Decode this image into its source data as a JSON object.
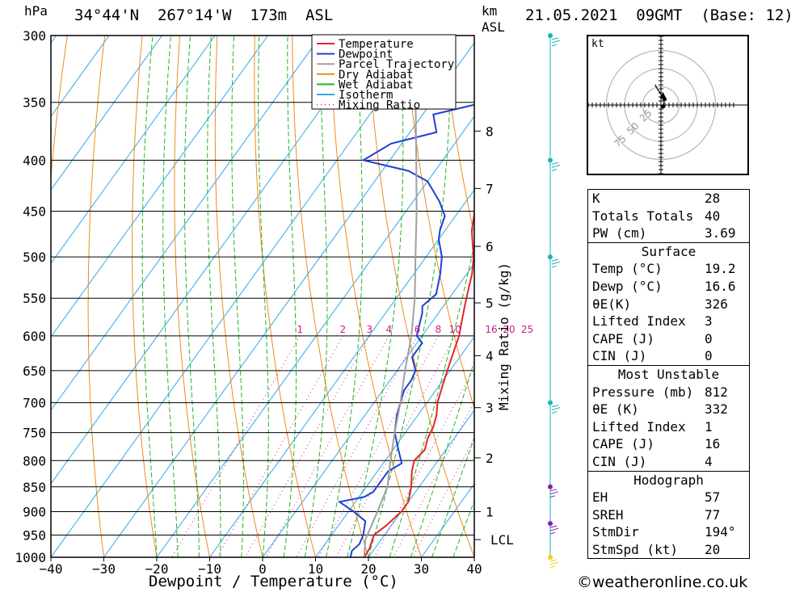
{
  "header": {
    "hpa_label": "hPa",
    "location": "34°44'N  267°14'W  173m  ASL",
    "km_label": "km",
    "asl_label": "ASL",
    "datetime": "21.05.2021  09GMT  (Base: 12)"
  },
  "chart_data": {
    "type": "line",
    "title": "34°44'N  267°14'W  173m  ASL",
    "xlabel": "Dewpoint / Temperature (°C)",
    "ylabel": "hPa",
    "xlim": [
      -40,
      40
    ],
    "ylim": [
      1000,
      300
    ],
    "pressure_levels": [
      300,
      350,
      400,
      450,
      500,
      550,
      600,
      650,
      700,
      750,
      800,
      850,
      900,
      950,
      1000
    ],
    "x_ticks": [
      -40,
      -30,
      -20,
      -10,
      0,
      10,
      20,
      30,
      40
    ],
    "x_tick_labels": [
      "−40",
      "−30",
      "−20",
      "−10",
      "0",
      "10",
      "20",
      "30",
      "40"
    ],
    "km_ticks": [
      {
        "km": 1,
        "p": 900
      },
      {
        "km": 2,
        "p": 795
      },
      {
        "km": 3,
        "p": 708
      },
      {
        "km": 4,
        "p": 628
      },
      {
        "km": 5,
        "p": 556
      },
      {
        "km": 6,
        "p": 488
      },
      {
        "km": 7,
        "p": 427
      },
      {
        "km": 8,
        "p": 374
      }
    ],
    "lcl": {
      "label": "LCL",
      "p": 960
    },
    "mixing_ratio_label": "Mixing Ratio (g/kg)",
    "mixing_ratio_labels": [
      "1",
      "2",
      "3",
      "4",
      "6",
      "8",
      "10",
      "16",
      "20",
      "25"
    ],
    "mixing_ratio_values": [
      1,
      2,
      3,
      4,
      6,
      8,
      10,
      16,
      20,
      25
    ],
    "skew": 36,
    "legend": {
      "placement": "top",
      "items": [
        {
          "name": "Temperature",
          "color": "#e8232a",
          "style": "solid"
        },
        {
          "name": "Dewpoint",
          "color": "#1e3fd8",
          "style": "solid"
        },
        {
          "name": "Parcel Trajectory",
          "color": "#a0a0a0",
          "style": "solid"
        },
        {
          "name": "Dry Adiabat",
          "color": "#f08a1c",
          "style": "solid"
        },
        {
          "name": "Wet Adiabat",
          "color": "#23b523",
          "style": "solid"
        },
        {
          "name": "Isotherm",
          "color": "#2ea8e8",
          "style": "solid"
        },
        {
          "name": "Mixing Ratio",
          "color": "#d01a8a",
          "style": "dotted"
        }
      ]
    },
    "series": [
      {
        "name": "Temperature",
        "color": "#e8232a",
        "points": [
          [
            1000,
            19.2
          ],
          [
            980,
            19
          ],
          [
            950,
            18
          ],
          [
            930,
            19
          ],
          [
            900,
            20
          ],
          [
            880,
            20
          ],
          [
            850,
            18.5
          ],
          [
            820,
            16.5
          ],
          [
            800,
            15.5
          ],
          [
            780,
            16
          ],
          [
            760,
            15
          ],
          [
            740,
            14.5
          ],
          [
            720,
            13.5
          ],
          [
            700,
            12
          ],
          [
            680,
            11
          ],
          [
            660,
            10
          ],
          [
            640,
            9
          ],
          [
            620,
            8
          ],
          [
            600,
            7
          ],
          [
            580,
            5.5
          ],
          [
            560,
            4
          ],
          [
            540,
            2.5
          ],
          [
            520,
            1
          ],
          [
            500,
            -1
          ],
          [
            485,
            -3
          ],
          [
            470,
            -5
          ],
          [
            450,
            -7
          ],
          [
            430,
            -9
          ],
          [
            410,
            -11
          ],
          [
            395,
            -13
          ],
          [
            380,
            -15.5
          ],
          [
            360,
            -19
          ],
          [
            340,
            -22
          ],
          [
            320,
            -25
          ],
          [
            300,
            -28
          ]
        ]
      },
      {
        "name": "Dewpoint",
        "color": "#1e3fd8",
        "points": [
          [
            1000,
            16.6
          ],
          [
            985,
            16
          ],
          [
            970,
            16.5
          ],
          [
            950,
            16
          ],
          [
            920,
            14.5
          ],
          [
            900,
            11
          ],
          [
            880,
            7
          ],
          [
            870,
            11
          ],
          [
            860,
            12
          ],
          [
            850,
            12
          ],
          [
            820,
            12
          ],
          [
            805,
            13.5
          ],
          [
            790,
            12
          ],
          [
            770,
            10
          ],
          [
            750,
            8
          ],
          [
            720,
            6
          ],
          [
            700,
            5
          ],
          [
            680,
            4
          ],
          [
            665,
            4
          ],
          [
            650,
            3.5
          ],
          [
            630,
            1
          ],
          [
            610,
            1
          ],
          [
            600,
            -1
          ],
          [
            585,
            -2
          ],
          [
            570,
            -3
          ],
          [
            560,
            -4
          ],
          [
            545,
            -3
          ],
          [
            520,
            -5
          ],
          [
            500,
            -7
          ],
          [
            480,
            -10
          ],
          [
            470,
            -11
          ],
          [
            455,
            -12
          ],
          [
            440,
            -15
          ],
          [
            420,
            -20
          ],
          [
            410,
            -25
          ],
          [
            400,
            -35
          ],
          [
            385,
            -32
          ],
          [
            375,
            -25
          ],
          [
            360,
            -28
          ],
          [
            350,
            -20
          ],
          [
            340,
            -22
          ],
          [
            330,
            -23
          ],
          [
            320,
            -25
          ],
          [
            300,
            -28
          ]
        ]
      },
      {
        "name": "Parcel Trajectory",
        "color": "#a0a0a0",
        "points": [
          [
            1000,
            19.2
          ],
          [
            960,
            17
          ],
          [
            900,
            15.5
          ],
          [
            850,
            14
          ],
          [
            800,
            11
          ],
          [
            750,
            8
          ],
          [
            700,
            5
          ],
          [
            650,
            1.5
          ],
          [
            600,
            -2
          ],
          [
            550,
            -6.5
          ],
          [
            500,
            -12
          ],
          [
            450,
            -18
          ],
          [
            400,
            -25
          ],
          [
            350,
            -33
          ],
          [
            300,
            -42
          ]
        ]
      }
    ]
  },
  "hodograph": {
    "unit": "kt",
    "ring_labels": [
      "25",
      "50",
      "75"
    ],
    "ring_speeds": [
      25,
      50,
      75
    ],
    "points": [
      [
        3,
        -2
      ],
      [
        5,
        8
      ],
      [
        -5,
        22
      ],
      [
        -8,
        28
      ]
    ],
    "storm_motion": [
      3,
      12
    ]
  },
  "wind_barbs": [
    {
      "p": 300,
      "color": "#17b6b6"
    },
    {
      "p": 400,
      "color": "#17b6b6"
    },
    {
      "p": 500,
      "color": "#17b6b6"
    },
    {
      "p": 700,
      "color": "#17b6b6"
    },
    {
      "p": 850,
      "color": "#8a1bb0"
    },
    {
      "p": 925,
      "color": "#8a1bb0"
    },
    {
      "p": 1000,
      "color": "#e8d21a"
    }
  ],
  "indices": {
    "rows": [
      {
        "k": "K",
        "v": "28"
      },
      {
        "k": "Totals Totals",
        "v": "40"
      },
      {
        "k": "PW (cm)",
        "v": "3.69"
      }
    ],
    "surface": {
      "title": "Surface",
      "rows": [
        {
          "k": "Temp (°C)",
          "v": "19.2"
        },
        {
          "k": "Dewp (°C)",
          "v": "16.6"
        },
        {
          "k": "θE(K)",
          "v": "326"
        },
        {
          "k": "Lifted Index",
          "v": "3"
        },
        {
          "k": "CAPE (J)",
          "v": "0"
        },
        {
          "k": "CIN (J)",
          "v": "0"
        }
      ]
    },
    "most_unstable": {
      "title": "Most Unstable",
      "rows": [
        {
          "k": "Pressure (mb)",
          "v": "812"
        },
        {
          "k": "θE (K)",
          "v": "332"
        },
        {
          "k": "Lifted Index",
          "v": "1"
        },
        {
          "k": "CAPE (J)",
          "v": "16"
        },
        {
          "k": "CIN (J)",
          "v": "4"
        }
      ]
    },
    "hodograph": {
      "title": "Hodograph",
      "rows": [
        {
          "k": "EH",
          "v": "57"
        },
        {
          "k": "SREH",
          "v": "77"
        },
        {
          "k": "StmDir",
          "v": "194°"
        },
        {
          "k": "StmSpd (kt)",
          "v": "20"
        }
      ]
    }
  },
  "footer": {
    "copyright": "©weatheronline.co.uk"
  }
}
